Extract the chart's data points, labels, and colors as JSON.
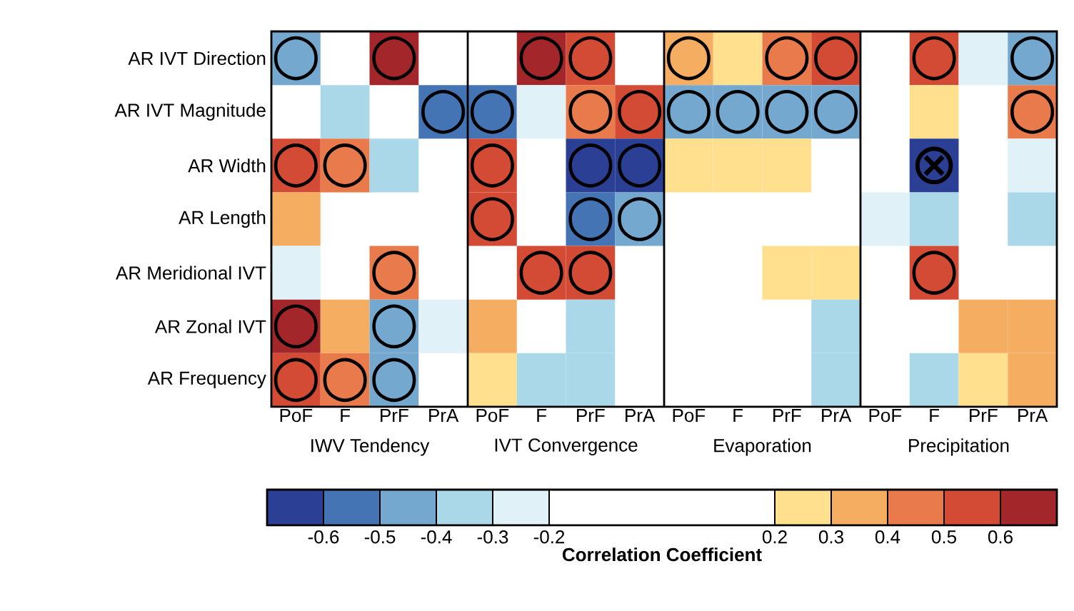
{
  "chart_data": {
    "type": "heatmap",
    "categories": [
      "PoF",
      "F",
      "PrF",
      "PrA",
      "PoF",
      "F",
      "PrF",
      "PrA",
      "PoF",
      "F",
      "PrF",
      "PrA",
      "PoF",
      "F",
      "PrF",
      "PrA"
    ],
    "annotations": [
      "IWV Tendency",
      "IVT Convergence",
      "Evaporation",
      "Precipitation"
    ],
    "y_categories": [
      "AR IVT Direction",
      "AR IVT Magnitude",
      "AR Width",
      "AR Length",
      "AR Meridional IVT",
      "AR Zonal IVT",
      "AR Frequency"
    ],
    "cells": [
      [
        -0.45,
        null,
        0.65,
        null,
        null,
        0.65,
        0.55,
        null,
        0.35,
        0.25,
        0.45,
        0.55,
        null,
        0.55,
        -0.25,
        -0.45
      ],
      [
        null,
        -0.35,
        null,
        -0.55,
        -0.55,
        -0.25,
        0.45,
        0.55,
        -0.45,
        -0.45,
        -0.45,
        -0.45,
        null,
        0.25,
        null,
        0.45
      ],
      [
        0.55,
        0.45,
        -0.35,
        null,
        0.55,
        null,
        -0.65,
        -0.65,
        0.25,
        0.25,
        0.25,
        null,
        null,
        -0.65,
        null,
        -0.25
      ],
      [
        0.35,
        null,
        null,
        null,
        0.55,
        null,
        -0.55,
        -0.45,
        null,
        null,
        null,
        null,
        -0.25,
        -0.35,
        null,
        -0.35
      ],
      [
        -0.25,
        null,
        0.45,
        null,
        null,
        0.55,
        0.55,
        null,
        null,
        null,
        0.25,
        0.25,
        null,
        0.55,
        null,
        null
      ],
      [
        0.65,
        0.35,
        -0.45,
        -0.25,
        0.35,
        null,
        -0.35,
        null,
        null,
        null,
        null,
        -0.35,
        null,
        null,
        0.35,
        0.35
      ],
      [
        0.55,
        0.45,
        -0.45,
        null,
        0.25,
        -0.35,
        -0.35,
        null,
        null,
        null,
        null,
        -0.35,
        null,
        -0.35,
        0.25,
        0.35
      ]
    ],
    "cell_labels": [
      [
        "○",
        null,
        "○",
        null,
        null,
        "○",
        "○",
        null,
        "○",
        null,
        "○",
        "○",
        null,
        "○",
        null,
        "○"
      ],
      [
        null,
        null,
        null,
        "○",
        "○",
        null,
        "○",
        "○",
        "○",
        "○",
        "○",
        "○",
        null,
        null,
        null,
        "○"
      ],
      [
        "○",
        "○",
        null,
        null,
        "○",
        null,
        "○",
        "○",
        null,
        null,
        null,
        null,
        null,
        "⊗",
        null,
        null
      ],
      [
        null,
        null,
        null,
        null,
        "○",
        null,
        "○",
        "○",
        null,
        null,
        null,
        null,
        null,
        null,
        null,
        null
      ],
      [
        null,
        null,
        "○",
        null,
        null,
        "○",
        "○",
        null,
        null,
        null,
        null,
        null,
        null,
        "○",
        null,
        null
      ],
      [
        "○",
        null,
        "○",
        null,
        null,
        null,
        null,
        null,
        null,
        null,
        null,
        null,
        null,
        null,
        null,
        null
      ],
      [
        "○",
        "○",
        "○",
        null,
        null,
        null,
        null,
        null,
        null,
        null,
        null,
        null,
        null,
        null,
        null,
        null
      ]
    ],
    "clim": [
      -0.7,
      0.7
    ],
    "cticks": [
      -0.6,
      -0.5,
      -0.4,
      -0.3,
      -0.2,
      0.2,
      0.3,
      0.4,
      0.5,
      0.6
    ],
    "clabel": "Correlation Coefficient",
    "colors": [
      "#2b3f94",
      "#4574b4",
      "#74a8cf",
      "#abd8e8",
      "#e0f1f7",
      "#ffffff",
      "#fee08f",
      "#f5ae61",
      "#e97a4b",
      "#d34b34",
      "#a3262a"
    ]
  }
}
